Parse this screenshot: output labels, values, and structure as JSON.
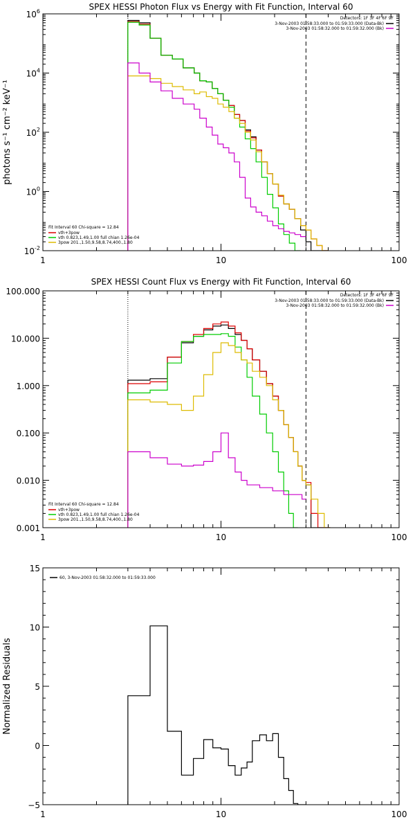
{
  "chart_data": [
    {
      "type": "line",
      "title": "SPEX HESSI Photon Flux vs Energy with Fit Function, Interval 60",
      "ylabel": "photons s⁻¹ cm⁻² keV⁻¹",
      "xlabel": "",
      "xscale": "log",
      "yscale": "log",
      "xlim": [
        1,
        100
      ],
      "ylim": [
        0.01,
        1000000
      ],
      "x_ticks": [
        {
          "value": 1,
          "label": "1"
        },
        {
          "value": 10,
          "label": "10"
        },
        {
          "value": 100,
          "label": "100"
        }
      ],
      "y_ticks": [
        {
          "value": 0.01,
          "label": "10⁻²",
          "base": "10",
          "exp": "-2"
        },
        {
          "value": 1,
          "label": "10⁰",
          "base": "10",
          "exp": "0"
        },
        {
          "value": 100,
          "label": "10²",
          "base": "10",
          "exp": "2"
        },
        {
          "value": 10000,
          "label": "10⁴",
          "base": "10",
          "exp": "4"
        },
        {
          "value": 1000000,
          "label": "10⁶",
          "base": "10",
          "exp": "6"
        }
      ],
      "markers": {
        "dotted_x": 3.0,
        "dashed_x": 30.0
      },
      "legend_topright": {
        "header": "Detectors: 1F 3F 4F 6F 9F",
        "entries": [
          {
            "text": "3-Nov-2003 01:58:33.000 to 01:59:33.000 (Data-Bk)",
            "color": "#000000"
          },
          {
            "text": "3-Nov-2003 01:58:32.000 to 01:59:32.000 (Bk)",
            "color": "#cc00cc"
          }
        ]
      },
      "legend_bottomleft": {
        "header": "Fit Interval 60   Chi-square = 12.84",
        "entries": [
          {
            "text": "vth+3pow",
            "color": "#dd0000"
          },
          {
            "text": "vth 0.823,1.49,1.00  full chian 1.26e-04",
            "color": "#00cc00"
          },
          {
            "text": "3pow 201.,1.50,9.58,8.74,400.,1.80",
            "color": "#ddbb00"
          }
        ]
      },
      "edges": [
        3.0,
        3.47,
        4.0,
        4.6,
        5.33,
        6.13,
        7.07,
        7.6,
        8.27,
        8.93,
        9.6,
        10.3,
        11.07,
        11.87,
        12.73,
        13.67,
        14.67,
        15.73,
        16.93,
        18.2,
        19.53,
        21.0,
        22.53,
        24.2,
        26.0,
        28.0,
        30.0,
        32.0,
        34.5,
        37.0,
        40.0
      ],
      "series": [
        {
          "name": "",
          "color": "#000000",
          "values": [
            600000,
            500000,
            150000,
            40000,
            30000,
            15000,
            10000,
            5500,
            5000,
            3000,
            2000,
            1200,
            800,
            400,
            250,
            120,
            70,
            25,
            10,
            4,
            1.8,
            0.7,
            0.38,
            0.25,
            0.12,
            0.05,
            0.02,
            0.01,
            0.01,
            0.01
          ]
        },
        {
          "name": "",
          "color": "#dd0000",
          "values": [
            550000,
            450000,
            150000,
            40000,
            30000,
            15000,
            10000,
            5500,
            5000,
            3000,
            2000,
            1200,
            800,
            400,
            250,
            110,
            65,
            25,
            10,
            4,
            1.8,
            0.7,
            0.38,
            0.25,
            0.12,
            0.07,
            0.05,
            0.025,
            0.015,
            0.01
          ]
        },
        {
          "name": "",
          "color": "#00cc00",
          "values": [
            520000,
            420000,
            150000,
            40000,
            30000,
            15000,
            10000,
            5500,
            5000,
            3000,
            2000,
            1200,
            700,
            300,
            150,
            60,
            28,
            10,
            3,
            0.8,
            0.28,
            0.08,
            0.035,
            0.018,
            0.01
          ]
        },
        {
          "name": "",
          "color": "#ddbb00",
          "values": [
            8000,
            8000,
            6500,
            4500,
            3500,
            2700,
            2000,
            2300,
            1600,
            1400,
            900,
            700,
            500,
            300,
            200,
            100,
            55,
            22,
            10,
            4,
            1.8,
            0.75,
            0.38,
            0.25,
            0.12,
            0.07,
            0.05,
            0.025,
            0.015,
            0.01
          ]
        },
        {
          "name": "",
          "color": "#cc00cc",
          "values": [
            22000,
            10000,
            5000,
            2500,
            1400,
            900,
            600,
            300,
            150,
            80,
            40,
            30,
            20,
            10,
            3,
            0.6,
            0.3,
            0.2,
            0.15,
            0.1,
            0.07,
            0.055,
            0.045,
            0.04,
            0.035,
            0.03
          ]
        }
      ]
    },
    {
      "type": "line",
      "title": "SPEX HESSI Count Flux vs Energy with Fit Function, Interval 60",
      "xlabel": "",
      "ylabel": "",
      "xscale": "log",
      "yscale": "log",
      "xlim": [
        1,
        100
      ],
      "ylim": [
        0.001,
        100
      ],
      "x_ticks": [
        {
          "value": 1,
          "label": "1"
        },
        {
          "value": 10,
          "label": "10"
        },
        {
          "value": 100,
          "label": "100"
        }
      ],
      "y_ticks": [
        {
          "value": 0.001,
          "label": "0.001"
        },
        {
          "value": 0.01,
          "label": "0.010"
        },
        {
          "value": 0.1,
          "label": "0.100"
        },
        {
          "value": 1,
          "label": "1.000"
        },
        {
          "value": 10,
          "label": "10.000"
        },
        {
          "value": 100,
          "label": "100.000"
        }
      ],
      "markers": {
        "dotted_x": 3.0,
        "dashed_x": 30.0
      },
      "legend_topright": {
        "header": "Detectors: 1F 3F 4F 6F 9F",
        "entries": [
          {
            "text": "3-Nov-2003 01:58:33.000 to 01:59:33.000 (Data-Bk)",
            "color": "#000000"
          },
          {
            "text": "3-Nov-2003 01:58:32.000 to 01:59:32.000 (Bk)",
            "color": "#cc00cc"
          }
        ]
      },
      "legend_bottomleft": {
        "header": "Fit Interval 60   Chi-square = 12.84",
        "entries": [
          {
            "text": "vth+3pow",
            "color": "#dd0000"
          },
          {
            "text": "vth 0.823,1.49,1.00  full chian 1.26e-04",
            "color": "#00cc00"
          },
          {
            "text": "3pow 201.,1.50,9.58,8.74,400.,1.80",
            "color": "#ddbb00"
          }
        ]
      },
      "edges": [
        3.0,
        4.0,
        5.0,
        6.0,
        7.0,
        8.0,
        9.0,
        10.0,
        11.0,
        12.0,
        13.0,
        14.0,
        15.0,
        16.5,
        18.0,
        19.5,
        21.0,
        22.5,
        24.0,
        25.5,
        27.0,
        28.5,
        30.0,
        32.0,
        35.0,
        38.0,
        41.0
      ],
      "series": [
        {
          "name": "",
          "color": "#000000",
          "values": [
            1.3,
            1.4,
            4.0,
            8.0,
            11.0,
            15.0,
            18.0,
            19.0,
            16.0,
            12.0,
            9.0,
            6.0,
            3.5,
            2.0,
            1.1,
            0.6,
            0.3,
            0.15,
            0.08,
            0.04,
            0.02,
            0.01,
            0.008,
            0.001,
            0.001,
            0.001
          ]
        },
        {
          "name": "",
          "color": "#dd0000",
          "values": [
            1.1,
            1.2,
            4.0,
            8.5,
            12.0,
            16.0,
            20.0,
            22.0,
            18.0,
            13.0,
            9.0,
            6.0,
            3.5,
            2.0,
            1.1,
            0.6,
            0.3,
            0.15,
            0.08,
            0.04,
            0.02,
            0.01,
            0.009,
            0.002,
            0.001,
            0.001
          ]
        },
        {
          "name": "",
          "color": "#00cc00",
          "values": [
            0.7,
            0.8,
            3.0,
            8.5,
            11.0,
            12.0,
            12.0,
            12.5,
            11.0,
            6.5,
            3.5,
            1.5,
            0.6,
            0.25,
            0.1,
            0.04,
            0.015,
            0.006,
            0.002,
            0.001
          ]
        },
        {
          "name": "",
          "color": "#ddbb00",
          "values": [
            0.5,
            0.45,
            0.4,
            0.3,
            0.6,
            1.7,
            5.0,
            8.0,
            7.0,
            5.0,
            3.5,
            3.0,
            2.0,
            1.5,
            1.0,
            0.5,
            0.3,
            0.15,
            0.08,
            0.04,
            0.02,
            0.01,
            0.008,
            0.004,
            0.002,
            0.001
          ]
        },
        {
          "name": "",
          "color": "#cc00cc",
          "values": [
            0.04,
            0.03,
            0.022,
            0.02,
            0.021,
            0.025,
            0.04,
            0.1,
            0.03,
            0.015,
            0.01,
            0.008,
            0.008,
            0.007,
            0.007,
            0.006,
            0.006,
            0.005,
            0.005,
            0.005,
            0.005,
            0.004
          ]
        }
      ]
    },
    {
      "type": "line",
      "title": "",
      "ylabel": "Normalized Residuals",
      "xlabel": "",
      "xscale": "log",
      "yscale": "linear",
      "xlim": [
        1,
        100
      ],
      "ylim": [
        -5,
        15
      ],
      "x_ticks": [
        {
          "value": 1,
          "label": "1"
        },
        {
          "value": 10,
          "label": "10"
        },
        {
          "value": 100,
          "label": "100"
        }
      ],
      "y_ticks": [
        {
          "value": -5,
          "label": "−5"
        },
        {
          "value": 0,
          "label": "0"
        },
        {
          "value": 5,
          "label": "5"
        },
        {
          "value": 10,
          "label": "10"
        },
        {
          "value": 15,
          "label": "15"
        }
      ],
      "legend_topleft": {
        "entries": [
          {
            "text": "60,  3-Nov-2003 01:58:32.000 to 01:59:33.000",
            "color": "#000000"
          }
        ]
      },
      "edges": [
        3.0,
        4.0,
        5.0,
        6.0,
        7.0,
        8.0,
        9.0,
        10.0,
        11.0,
        12.0,
        13.0,
        14.0,
        15.0,
        16.5,
        18.0,
        19.5,
        21.0,
        22.5,
        24.0,
        25.5,
        27.0,
        28.5,
        30.0
      ],
      "series": [
        {
          "name": "",
          "color": "#000000",
          "values": [
            4.2,
            10.1,
            1.2,
            -2.5,
            -1.1,
            0.5,
            -0.2,
            -0.3,
            -1.7,
            -2.5,
            -1.9,
            -1.4,
            0.4,
            0.9,
            0.4,
            1.0,
            -1.0,
            -2.8,
            -3.8,
            -4.9,
            -5.0,
            -5.0
          ]
        }
      ]
    }
  ]
}
